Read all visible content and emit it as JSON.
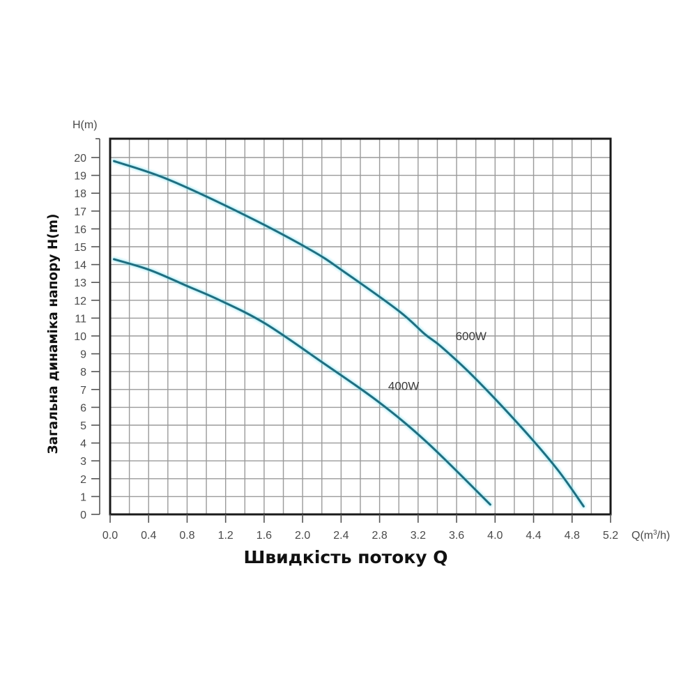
{
  "chart_data": {
    "type": "line",
    "title": "",
    "xlabel": "Швидкість потоку Q",
    "ylabel": "Загальна динаміка напору H(m)",
    "x_unit": "Q(m³/h)",
    "y_unit": "H(m)",
    "xlim": [
      0,
      5.2
    ],
    "ylim": [
      0,
      21
    ],
    "grid": true,
    "x_ticks": [
      "0.0",
      "0.4",
      "0.8",
      "1.2",
      "1.6",
      "2.0",
      "2.4",
      "2.8",
      "3.2",
      "3.6",
      "4.0",
      "4.4",
      "4.8",
      "5.2"
    ],
    "y_ticks": [
      "0",
      "1",
      "2",
      "3",
      "4",
      "5",
      "6",
      "7",
      "8",
      "9",
      "10",
      "11",
      "12",
      "13",
      "14",
      "15",
      "16",
      "17",
      "18",
      "19",
      "20"
    ],
    "legend": "inline labels",
    "series": [
      {
        "name": "600W",
        "color": "#1f6e80",
        "x": [
          0.04,
          0.59,
          1.39,
          2.09,
          2.43,
          3.0,
          3.27,
          3.44,
          3.78,
          4.27,
          4.65,
          4.92
        ],
        "y": [
          19.8,
          18.8,
          16.8,
          14.8,
          13.6,
          11.4,
          10.1,
          9.4,
          7.7,
          4.9,
          2.5,
          0.45
        ]
      },
      {
        "name": "400W",
        "color": "#1f6e80",
        "x": [
          0.04,
          0.41,
          0.8,
          1.14,
          1.61,
          2.21,
          2.79,
          3.3,
          3.95
        ],
        "y": [
          14.3,
          13.7,
          12.8,
          12.0,
          10.7,
          8.5,
          6.3,
          4.0,
          0.55
        ]
      }
    ],
    "annotations": [
      {
        "text": "600W",
        "x": 3.75,
        "y": 10.0
      },
      {
        "text": "400W",
        "x": 3.05,
        "y": 7.2
      }
    ]
  },
  "labels": {
    "y_unit": "H(m)",
    "x_unit_prefix": "Q(m",
    "x_unit_sup": "3",
    "x_unit_suffix": "/h)",
    "x_title": "Швидкість потоку Q",
    "y_title": "Загальна динаміка напору H(m)"
  }
}
